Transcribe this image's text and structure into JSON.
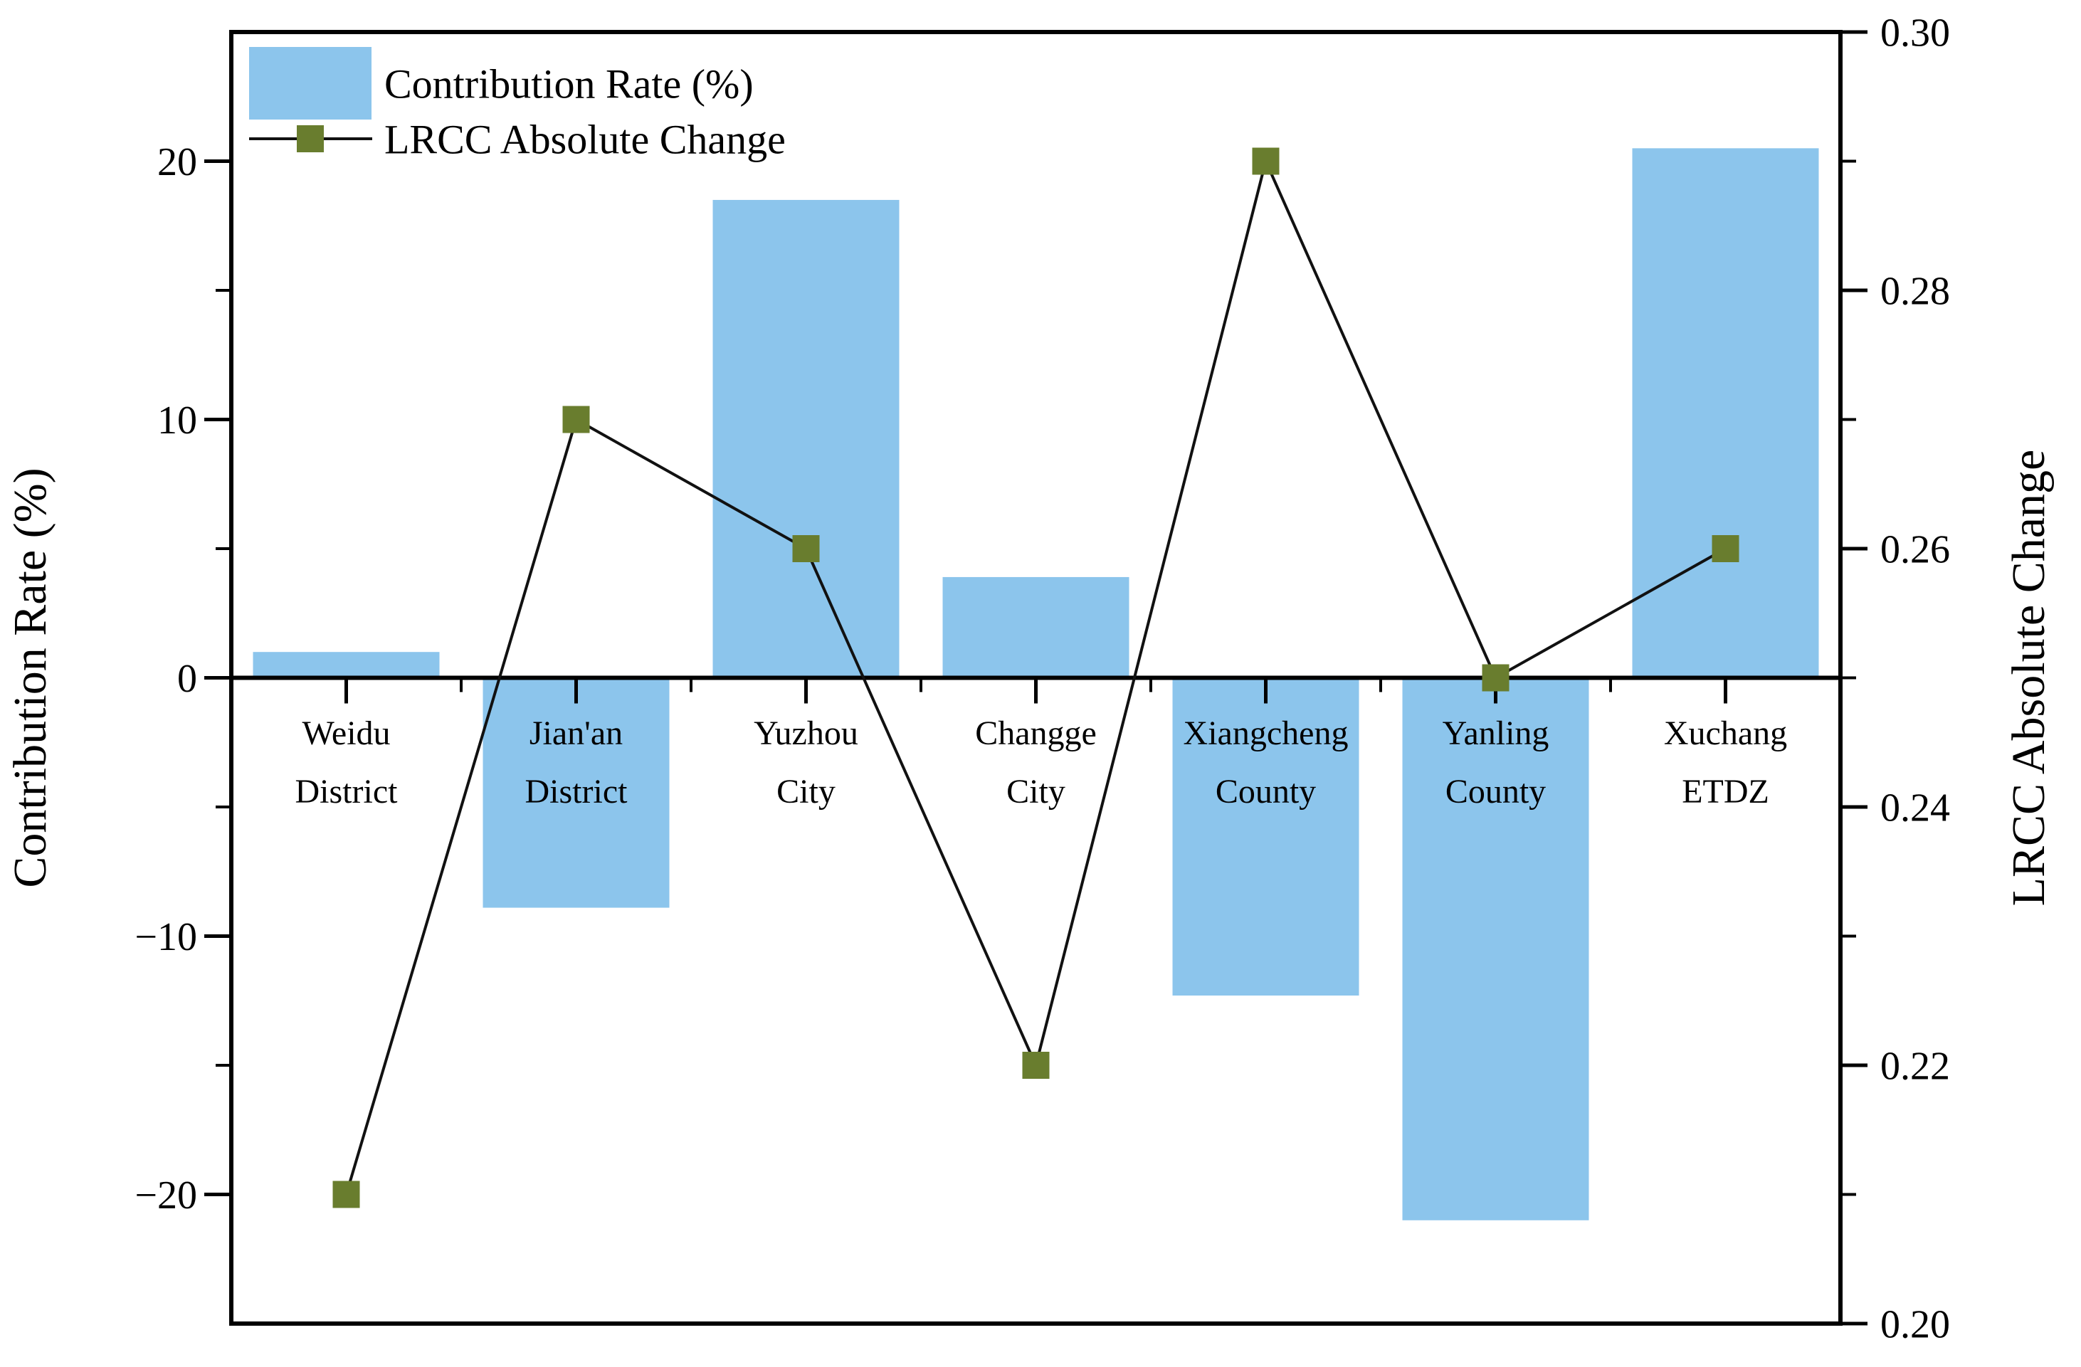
{
  "figure": {
    "background": "#ffffff",
    "frame_color": "#000000"
  },
  "legend": {
    "position": "upper-left",
    "bar_item_label": "Contribution Rate (%)",
    "line_item_label": "LRCC Absolute Change"
  },
  "chart_data": {
    "type": "bar",
    "subtype": "dual-axis bar+line combo",
    "categories": [
      "Weidu District",
      "Jian'an District",
      "Yuzhou City",
      "Changge City",
      "Xiangcheng County",
      "Yanling County",
      "Xuchang ETDZ"
    ],
    "category_label_lines": [
      [
        "Weidu",
        "District"
      ],
      [
        "Jian'an",
        "District"
      ],
      [
        "Yuzhou",
        "City"
      ],
      [
        "Changge",
        "City"
      ],
      [
        "Xiangcheng",
        "County"
      ],
      [
        "Yanling",
        "County"
      ],
      [
        "Xuchang",
        "ETDZ"
      ]
    ],
    "series": [
      {
        "name": "Contribution Rate (%)",
        "type": "bar",
        "axis": "left",
        "values": [
          1.0,
          -8.9,
          18.5,
          3.9,
          -12.3,
          -21.0,
          20.5
        ],
        "color": "#8cc5ec"
      },
      {
        "name": "LRCC Absolute Change",
        "type": "line",
        "axis": "right",
        "values": [
          0.21,
          0.27,
          0.26,
          0.22,
          0.29,
          0.25,
          0.26
        ],
        "color": "#111111",
        "marker": "square",
        "marker_color": "#697d2e"
      }
    ],
    "left_axis": {
      "title": "Contribution Rate (%)",
      "range": [
        -25,
        25
      ],
      "major_tick_values": [
        20,
        10,
        0,
        -10,
        -20
      ],
      "major_tick_labels": [
        "20",
        "10",
        "0",
        "−10",
        "−20"
      ],
      "minor_tick_values": [
        15,
        5,
        -5,
        -15
      ]
    },
    "right_axis": {
      "title": "LRCC Absolute Change",
      "range": [
        0.2,
        0.3
      ],
      "major_tick_values": [
        0.3,
        0.28,
        0.26,
        0.24,
        0.22,
        0.2
      ],
      "major_tick_labels": [
        "0.30",
        "0.28",
        "0.26",
        "0.24",
        "0.22",
        "0.20"
      ],
      "minor_tick_values": [
        0.29,
        0.27,
        0.25,
        0.23,
        0.21
      ]
    },
    "x_axis": {
      "baseline_value": 0,
      "grid": false
    }
  }
}
